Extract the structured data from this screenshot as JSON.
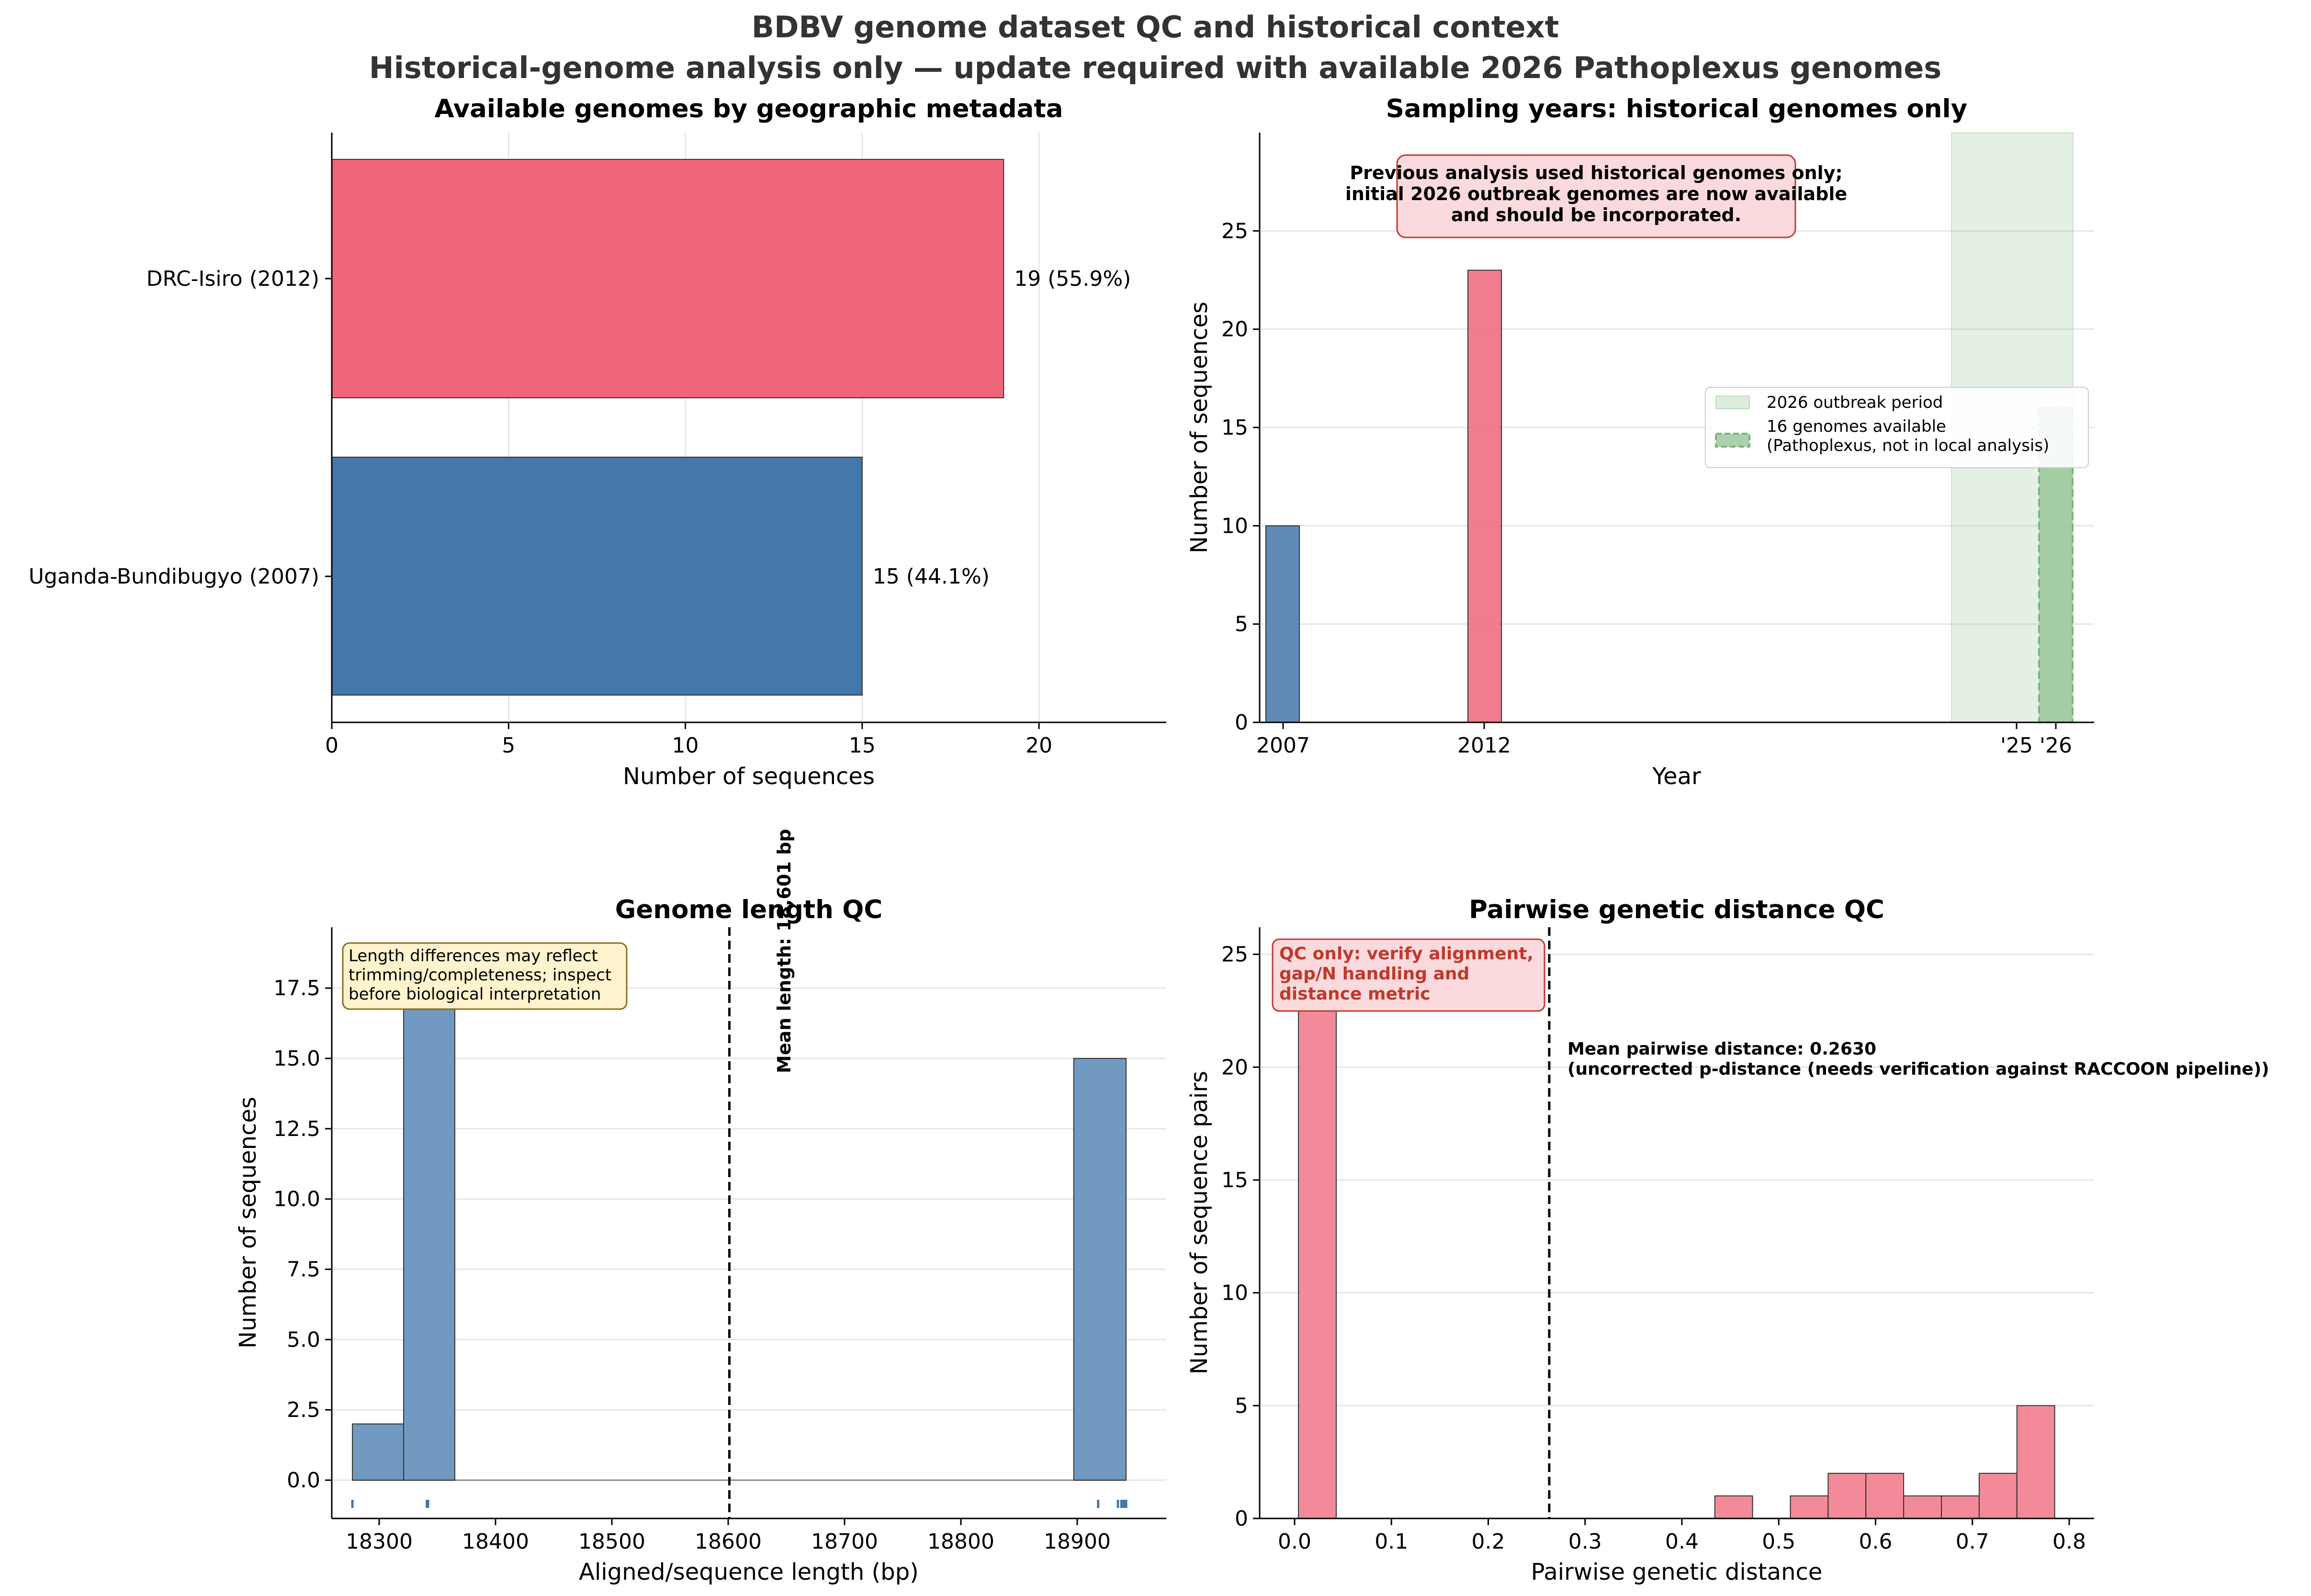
{
  "figure": {
    "title_line1": "BDBV genome dataset QC and historical context",
    "title_line2": "Historical-genome analysis only — update required with available 2026 Pathoplexus genomes"
  },
  "colors": {
    "drc": "#ef6579",
    "uganda": "#4477aa",
    "green": "#8fc28f",
    "blue_hist": "#7299c0",
    "pink_hist": "#f28a9a",
    "callout_red": "#c0392b",
    "callout_red_bg": "#fadadd",
    "callout_yellow_bg": "#fff3cd",
    "callout_yellow_edge": "#8a6d1e"
  },
  "chart_data": [
    {
      "type": "bar",
      "orientation": "horizontal",
      "title": "Available genomes by geographic metadata",
      "xlabel": "Number of sequences",
      "ylabel": "",
      "xlim": [
        0,
        23.6
      ],
      "xticks": [
        "0",
        "5",
        "10",
        "15",
        "20"
      ],
      "grid": true,
      "categories": [
        "DRC-Isiro (2012)",
        "Uganda-Bundibugyo (2007)"
      ],
      "values": [
        19,
        15
      ],
      "labels": [
        "19 (55.9%)",
        "15 (44.1%)"
      ]
    },
    {
      "type": "bar",
      "title": "Sampling years: historical genomes only",
      "xlabel": "Year",
      "ylabel": "Number of sequences",
      "ylim": [
        0,
        30
      ],
      "yticks": [
        "0",
        "5",
        "10",
        "15",
        "20",
        "25"
      ],
      "xticks": [
        "2007",
        "2012",
        "'25",
        "'26"
      ],
      "grid": true,
      "bars": [
        {
          "x": 2007,
          "value": 10,
          "series": "historical"
        },
        {
          "x": 2012,
          "value": 23,
          "series": "historical"
        },
        {
          "x": 2026,
          "value": 16,
          "series": "2026 available"
        }
      ],
      "annotation": "Previous analysis used historical genomes only;\ninitial 2026 outbreak genomes are now available\nand should be incorporated.",
      "legend_placement": "right",
      "legend": [
        {
          "label": "2026 outbreak period"
        },
        {
          "label": "16 genomes available\n(Pathoplexus, not in local analysis)"
        }
      ]
    },
    {
      "type": "bar",
      "subtype": "histogram",
      "title": "Genome length QC",
      "xlabel": "Aligned/sequence length (bp)",
      "ylabel": "Number of sequences",
      "xlim": [
        18240,
        18975
      ],
      "ylim": [
        -1.5,
        19.5
      ],
      "xticks": [
        "18300",
        "18400",
        "18500",
        "18600",
        "18700",
        "18800",
        "18900"
      ],
      "yticks": [
        "0.0",
        "2.5",
        "5.0",
        "7.5",
        "10.0",
        "12.5",
        "15.0",
        "17.5"
      ],
      "grid": true,
      "bins": [
        {
          "x0": 18277,
          "x1": 18321,
          "value": 2
        },
        {
          "x0": 18321,
          "x1": 18365,
          "value": 17
        },
        {
          "x0": 18897,
          "x1": 18942,
          "value": 15
        }
      ],
      "rug": [
        18277,
        18341,
        18342,
        18918,
        18935,
        18938,
        18940,
        18942
      ],
      "mean_line": 18601,
      "mean_label": "Mean length: 18,601 bp",
      "annotation": "Length differences may reflect\ntrimming/completeness; inspect\nbefore biological interpretation"
    },
    {
      "type": "bar",
      "subtype": "histogram",
      "title": "Pairwise genetic distance QC",
      "xlabel": "Pairwise genetic distance",
      "ylabel": "Number of sequence pairs",
      "xlim": [
        -0.04,
        0.83
      ],
      "ylim": [
        0,
        26.2
      ],
      "xticks": [
        "0.0",
        "0.1",
        "0.2",
        "0.3",
        "0.4",
        "0.5",
        "0.6",
        "0.7",
        "0.8"
      ],
      "yticks": [
        "0",
        "5",
        "10",
        "15",
        "20",
        "25"
      ],
      "grid": true,
      "bins": [
        {
          "x0": 0.004,
          "x1": 0.043,
          "value": 25
        },
        {
          "x0": 0.434,
          "x1": 0.473,
          "value": 1
        },
        {
          "x0": 0.512,
          "x1": 0.551,
          "value": 1
        },
        {
          "x0": 0.551,
          "x1": 0.59,
          "value": 2
        },
        {
          "x0": 0.59,
          "x1": 0.629,
          "value": 2
        },
        {
          "x0": 0.629,
          "x1": 0.668,
          "value": 1
        },
        {
          "x0": 0.668,
          "x1": 0.707,
          "value": 1
        },
        {
          "x0": 0.707,
          "x1": 0.746,
          "value": 2
        },
        {
          "x0": 0.746,
          "x1": 0.785,
          "value": 5
        }
      ],
      "mean_line": 0.263,
      "mean_label": "Mean pairwise distance: 0.2630\n(uncorrected p-distance (needs verification against RACCOON pipeline))",
      "annotation": "QC only: verify alignment,\ngap/N handling and\ndistance metric"
    }
  ]
}
